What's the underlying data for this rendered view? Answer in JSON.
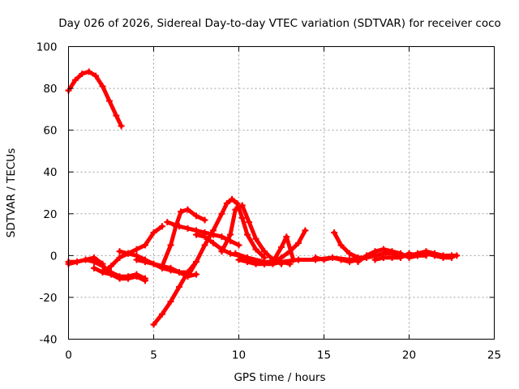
{
  "chart_data": {
    "type": "line",
    "title": "Day 026 of 2026, Sidereal Day-to-day VTEC variation (SDTVAR) for receiver coco",
    "xlabel": "GPS time / hours",
    "ylabel": "SDTVAR / TECUs",
    "xlim": [
      0,
      25
    ],
    "ylim": [
      -40,
      100
    ],
    "xticks": [
      0,
      5,
      10,
      15,
      20,
      25
    ],
    "yticks": [
      -40,
      -20,
      0,
      20,
      40,
      60,
      80,
      100
    ],
    "xtick_labels": [
      "0",
      "5",
      "10",
      "15",
      "20",
      "25"
    ],
    "ytick_labels": [
      "-40",
      "-20",
      "0",
      "20",
      "40",
      "60",
      "80",
      "100"
    ],
    "grid": true,
    "color": "#ff0000",
    "series": [
      {
        "name": "s1",
        "x": [
          0.0,
          0.4,
          0.8,
          1.2,
          1.6,
          2.0,
          2.4,
          2.8,
          3.1
        ],
        "y": [
          79,
          84,
          87,
          88,
          86,
          81,
          74,
          67,
          62
        ]
      },
      {
        "name": "s2",
        "x": [
          0.0,
          0.5,
          1.0,
          1.5,
          2.0,
          2.5,
          3.0,
          3.5,
          4.0,
          4.5
        ],
        "y": [
          -4,
          -3,
          -2,
          -3,
          -5,
          -8,
          -10,
          -10,
          -9,
          -11
        ]
      },
      {
        "name": "s3",
        "x": [
          0.0,
          0.5,
          1.0,
          1.5,
          2.0
        ],
        "y": [
          -3,
          -3,
          -2,
          -1,
          -4
        ]
      },
      {
        "name": "s4",
        "x": [
          1.5,
          2.0,
          2.5,
          3.0,
          3.5,
          4.0,
          4.5
        ],
        "y": [
          -6,
          -8,
          -9,
          -11,
          -11,
          -10,
          -12
        ]
      },
      {
        "name": "s5",
        "x": [
          2.0,
          2.5,
          3.0,
          3.5,
          4.0,
          4.5,
          5.0,
          5.5
        ],
        "y": [
          -8,
          -5,
          -1,
          1,
          3,
          5,
          11,
          14
        ]
      },
      {
        "name": "s6",
        "x": [
          3.0,
          3.5,
          4.0,
          4.5,
          5.0,
          5.5,
          6.0,
          6.5,
          7.0
        ],
        "y": [
          2,
          1,
          0,
          -2,
          -4,
          -6,
          -7,
          -8,
          -8
        ]
      },
      {
        "name": "s7",
        "x": [
          4.0,
          4.5,
          5.0,
          5.5,
          6.0,
          6.5,
          7.0,
          7.5
        ],
        "y": [
          -2,
          -3,
          -4,
          -5,
          -6,
          -8,
          -10,
          -9
        ]
      },
      {
        "name": "s8",
        "x": [
          5.0,
          5.5,
          6.0,
          6.5,
          7.0,
          7.5
        ],
        "y": [
          -33,
          -28,
          -22,
          -15,
          -8,
          -3
        ]
      },
      {
        "name": "s9",
        "x": [
          5.5,
          6.0,
          6.3,
          6.6,
          7.0,
          7.5,
          8.0
        ],
        "y": [
          -5,
          5,
          14,
          21,
          22,
          19,
          17
        ]
      },
      {
        "name": "s10",
        "x": [
          5.8,
          6.5,
          7.0,
          7.5,
          8.0,
          8.5,
          9.0,
          9.5,
          10.0
        ],
        "y": [
          16,
          14,
          13,
          12,
          11,
          10,
          9,
          7,
          5
        ]
      },
      {
        "name": "s11",
        "x": [
          7.0,
          7.5,
          8.0,
          8.5,
          9.0,
          9.3,
          9.6,
          9.9,
          10.2,
          10.5,
          11.0,
          11.5
        ],
        "y": [
          -10,
          -3,
          5,
          12,
          20,
          25,
          27,
          25,
          18,
          10,
          3,
          -1
        ]
      },
      {
        "name": "s12",
        "x": [
          9.0,
          9.5,
          9.8,
          10.2,
          10.6,
          11.0,
          11.5,
          12.0,
          12.5
        ],
        "y": [
          2,
          10,
          22,
          24,
          16,
          8,
          2,
          -2,
          -4
        ]
      },
      {
        "name": "s13",
        "x": [
          7.5,
          8.0,
          8.5,
          9.0,
          9.5,
          10.0,
          10.5,
          11.0,
          11.5,
          12.0,
          12.5,
          13.0
        ],
        "y": [
          10,
          9,
          6,
          3,
          1,
          0,
          -2,
          -3,
          -4,
          -4,
          -3,
          -4
        ]
      },
      {
        "name": "s14",
        "x": [
          9.8,
          10.5,
          11.0,
          11.5,
          12.0,
          12.5,
          12.8,
          13.2
        ],
        "y": [
          1,
          -1,
          -3,
          -4,
          -3,
          4,
          9,
          -2
        ]
      },
      {
        "name": "s15",
        "x": [
          10.0,
          10.5,
          11.0,
          11.5,
          12.0,
          12.5,
          13.0,
          13.5,
          13.9
        ],
        "y": [
          -2,
          -3,
          -4,
          -4,
          -3,
          -1,
          2,
          6,
          12
        ]
      },
      {
        "name": "s16",
        "x": [
          10.5,
          11.5,
          12.5,
          13.5,
          14.5,
          15.5,
          16.5,
          17.5
        ],
        "y": [
          -1,
          -3,
          -3,
          -2,
          -2,
          -1,
          -2,
          -1
        ]
      },
      {
        "name": "s17",
        "x": [
          14.5,
          15.0,
          15.5,
          16.0,
          16.5,
          17.0,
          17.5,
          18.0
        ],
        "y": [
          -1,
          -2,
          -1,
          -2,
          -3,
          -2,
          -1,
          0
        ]
      },
      {
        "name": "s18",
        "x": [
          15.6,
          16.0,
          16.5,
          17.0,
          17.5,
          18.0,
          18.5,
          19.0,
          19.5
        ],
        "y": [
          11,
          5,
          1,
          -1,
          -1,
          0,
          1,
          1,
          0
        ]
      },
      {
        "name": "s19",
        "x": [
          17.0,
          17.5,
          18.0,
          18.5,
          19.0,
          19.5,
          20.0,
          20.5,
          21.0
        ],
        "y": [
          -3,
          0,
          2,
          3,
          2,
          1,
          -1,
          0,
          0
        ]
      },
      {
        "name": "s20",
        "x": [
          18.0,
          18.5,
          19.0,
          19.5,
          20.0,
          20.5,
          21.0,
          21.5,
          22.0,
          22.5,
          22.8
        ],
        "y": [
          -2,
          -1,
          -1,
          0,
          0,
          1,
          2,
          1,
          0,
          0,
          0
        ]
      },
      {
        "name": "s21",
        "x": [
          19.0,
          19.5,
          20.0,
          20.5,
          21.0,
          21.5,
          22.0,
          22.5
        ],
        "y": [
          -1,
          -1,
          1,
          0,
          1,
          0,
          -1,
          -1
        ]
      }
    ]
  }
}
